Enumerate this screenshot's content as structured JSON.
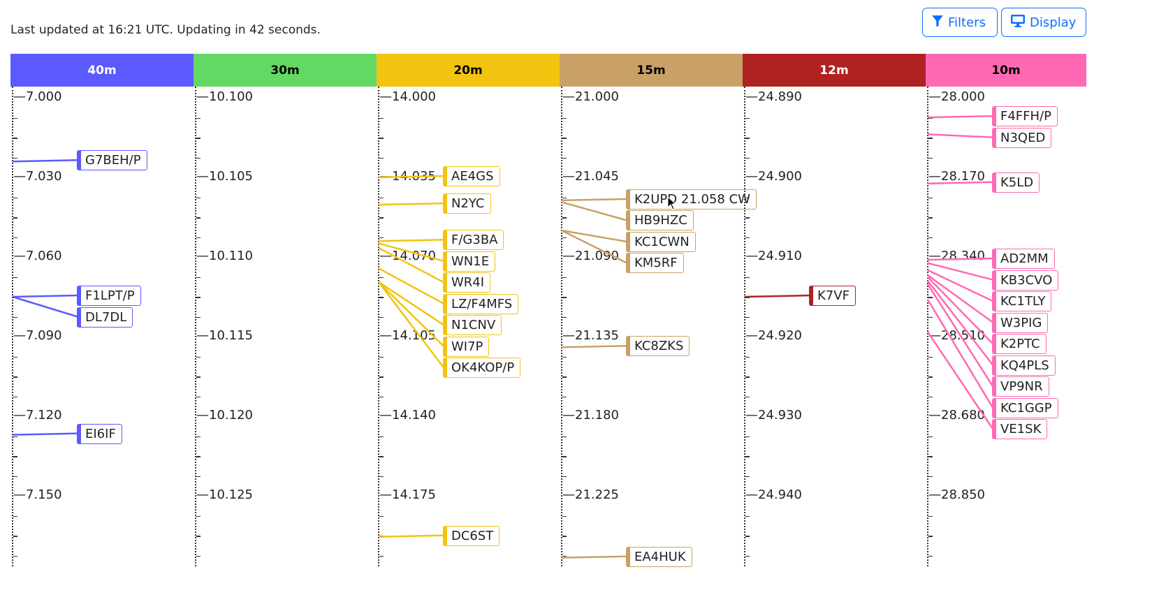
{
  "status_text": "Last updated at 16:21 UTC. Updating in 42 seconds.",
  "toolbar": {
    "filters_label": "Filters",
    "filters_icon": "filter-icon",
    "display_label": "Display",
    "display_icon": "monitor-icon",
    "accent": "#0d6efd"
  },
  "bands": [
    {
      "name": "40m",
      "color": "#5a5aff",
      "text_color": "#ffffff",
      "start": 7.0,
      "major_step": 0.03,
      "ticks": [
        "7.000",
        "7.030",
        "7.060",
        "7.090",
        "7.120",
        "7.150"
      ],
      "spots": [
        {
          "call": "G7BEH/P",
          "freq": 7.024
        },
        {
          "call": "F1LPT/P",
          "freq": 7.075
        },
        {
          "call": "DL7DL",
          "freq": 7.075
        },
        {
          "call": "EI6IF",
          "freq": 7.127
        }
      ]
    },
    {
      "name": "30m",
      "color": "#63d963",
      "text_color": "#000000",
      "start": 10.1,
      "major_step": 0.005,
      "ticks": [
        "10.100",
        "10.105",
        "10.110",
        "10.115",
        "10.120",
        "10.125"
      ],
      "spots": []
    },
    {
      "name": "20m",
      "color": "#f2c40f",
      "text_color": "#000000",
      "start": 14.0,
      "major_step": 0.035,
      "ticks": [
        "14.000",
        "14.035",
        "14.070",
        "14.105",
        "14.140",
        "14.175"
      ],
      "spots": [
        {
          "call": "AE4GS",
          "freq": 14.035
        },
        {
          "call": "N2YC",
          "freq": 14.047
        },
        {
          "call": "F/G3BA",
          "freq": 14.063
        },
        {
          "call": "WN1E",
          "freq": 14.064
        },
        {
          "call": "WR4I",
          "freq": 14.066
        },
        {
          "call": "LZ/F4MFS",
          "freq": 14.075
        },
        {
          "call": "N1CNV",
          "freq": 14.081
        },
        {
          "call": "WI7P",
          "freq": 14.081
        },
        {
          "call": "OK4KOP/P",
          "freq": 14.081
        },
        {
          "call": "DC6ST",
          "freq": 14.193
        }
      ]
    },
    {
      "name": "15m",
      "color": "#c9a166",
      "text_color": "#000000",
      "start": 21.0,
      "major_step": 0.045,
      "ticks": [
        "21.000",
        "21.045",
        "21.090",
        "21.135",
        "21.180",
        "21.225"
      ],
      "spots": [
        {
          "call": "K2UPD 21.058 CW",
          "freq": 21.058
        },
        {
          "call": "HB9HZC",
          "freq": 21.059
        },
        {
          "call": "KC1CWN",
          "freq": 21.075
        },
        {
          "call": "KM5RF",
          "freq": 21.075
        },
        {
          "call": "KC8ZKS",
          "freq": 21.141
        },
        {
          "call": "EA4HUK",
          "freq": 21.26
        }
      ]
    },
    {
      "name": "12m",
      "color": "#b02222",
      "text_color": "#ffffff",
      "start": 24.89,
      "major_step": 0.01,
      "ticks": [
        "24.890",
        "24.900",
        "24.910",
        "24.920",
        "24.930",
        "24.940"
      ],
      "spots": [
        {
          "call": "K7VF",
          "freq": 24.915
        }
      ]
    },
    {
      "name": "10m",
      "color": "#ff69b4",
      "text_color": "#000000",
      "start": 28.0,
      "major_step": 0.17,
      "ticks": [
        "28.000",
        "28.170",
        "28.340",
        "28.510",
        "28.680",
        "28.850"
      ],
      "spots": [
        {
          "call": "F4FFH/P",
          "freq": 28.042
        },
        {
          "call": "N3QED",
          "freq": 28.078
        },
        {
          "call": "K5LD",
          "freq": 28.183
        },
        {
          "call": "AD2MM",
          "freq": 28.346
        },
        {
          "call": "KB3CVO",
          "freq": 28.353
        },
        {
          "call": "KC1TLY",
          "freq": 28.368
        },
        {
          "call": "W3PIG",
          "freq": 28.379
        },
        {
          "call": "K2PTC",
          "freq": 28.383
        },
        {
          "call": "KQ4PLS",
          "freq": 28.391
        },
        {
          "call": "VP9NR",
          "freq": 28.398
        },
        {
          "call": "KC1GGP",
          "freq": 28.431
        },
        {
          "call": "VE1SK",
          "freq": 28.5
        }
      ]
    }
  ]
}
